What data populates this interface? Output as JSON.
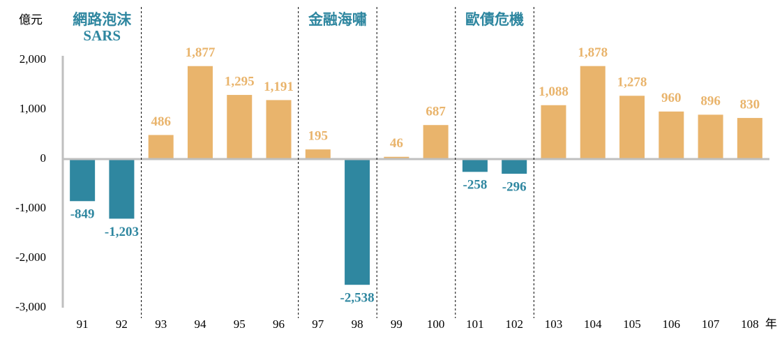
{
  "chart_data": {
    "type": "bar",
    "y_unit": "億元",
    "x_unit": "年",
    "categories": [
      "91",
      "92",
      "93",
      "94",
      "95",
      "96",
      "97",
      "98",
      "99",
      "100",
      "101",
      "102",
      "103",
      "104",
      "105",
      "106",
      "107",
      "108"
    ],
    "values": [
      -849,
      -1203,
      486,
      1877,
      1295,
      1191,
      195,
      -2538,
      46,
      687,
      -258,
      -296,
      1088,
      1878,
      1278,
      960,
      896,
      830
    ],
    "value_labels": [
      "-849",
      "-1,203",
      "486",
      "1,877",
      "1,295",
      "1,191",
      "195",
      "-2,538",
      "46",
      "687",
      "-258",
      "-296",
      "1,088",
      "1,878",
      "1,278",
      "960",
      "896",
      "830"
    ],
    "positive_color": "#e9b46c",
    "negative_color": "#2f87a0",
    "annotation_color": "#2f87a0",
    "ylim": [
      -3000,
      2000
    ],
    "yticks": [
      {
        "value": 2000,
        "label": "2,000"
      },
      {
        "value": 1000,
        "label": "1,000"
      },
      0,
      {
        "value": -1000,
        "label": "-1,000"
      },
      {
        "value": -2000,
        "label": "-2,000"
      },
      {
        "value": -3000,
        "label": "-3,000"
      }
    ],
    "grid": false,
    "annotations": [
      {
        "text": [
          "網路泡沫",
          "SARS"
        ],
        "categories": [
          "91",
          "92"
        ]
      },
      {
        "text": [
          "金融海嘯"
        ],
        "categories": [
          "97",
          "98"
        ]
      },
      {
        "text": [
          "歐債危機"
        ],
        "categories": [
          "101",
          "102"
        ]
      }
    ]
  }
}
